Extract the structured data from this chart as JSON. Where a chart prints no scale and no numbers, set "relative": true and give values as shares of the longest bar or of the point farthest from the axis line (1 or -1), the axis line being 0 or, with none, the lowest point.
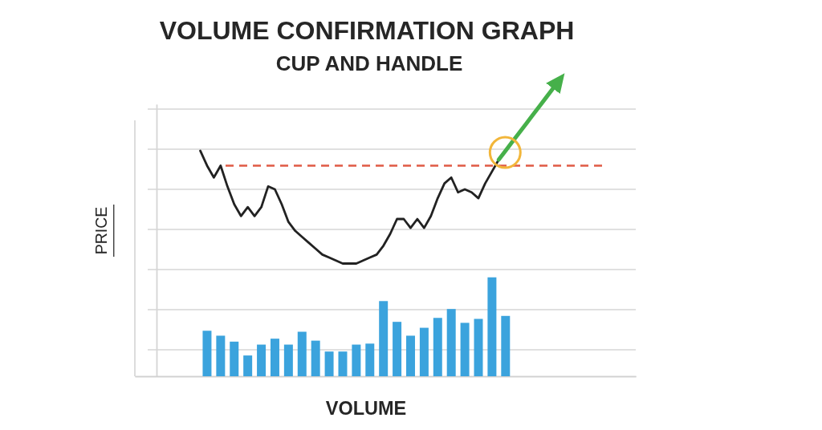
{
  "chart_data": [
    {
      "type": "line",
      "title": "VOLUME CONFIRMATION GRAPH",
      "subtitle": "CUP AND HANDLE",
      "ylabel": "PRICE",
      "relative": true,
      "grid": "y",
      "categories": [
        null,
        null,
        null,
        null,
        null,
        null,
        null,
        null,
        null,
        null,
        null,
        null,
        null,
        null,
        null,
        null,
        null,
        null,
        null,
        null,
        null,
        null,
        null,
        null,
        null,
        null,
        null,
        null,
        null,
        null,
        null,
        null,
        null,
        null,
        null,
        null,
        null,
        null,
        null,
        null,
        null,
        null,
        null,
        null,
        null,
        null,
        null,
        null,
        null,
        null,
        null,
        null,
        null,
        null
      ],
      "series": [
        {
          "color": "#222222",
          "values": [
            0.76,
            0.71,
            0.67,
            0.71,
            0.64,
            0.58,
            0.54,
            0.57,
            0.54,
            0.57,
            0.64,
            0.63,
            0.58,
            0.52,
            0.49,
            0.47,
            0.45,
            0.43,
            0.41,
            0.4,
            0.39,
            0.38,
            0.38,
            0.38,
            0.39,
            0.4,
            0.41,
            0.44,
            0.48,
            0.53,
            0.53,
            0.5,
            0.53,
            0.5,
            0.54,
            0.6,
            0.65,
            0.67,
            0.62,
            0.63,
            0.62,
            0.6,
            0.65,
            0.69,
            0.73,
            null,
            null,
            null,
            null,
            null,
            null,
            null,
            null,
            null
          ]
        },
        {
          "color": "#46b04a",
          "values": [
            null,
            null,
            null,
            null,
            null,
            null,
            null,
            null,
            null,
            null,
            null,
            null,
            null,
            null,
            null,
            null,
            null,
            null,
            null,
            null,
            null,
            null,
            null,
            null,
            null,
            null,
            null,
            null,
            null,
            null,
            null,
            null,
            null,
            null,
            null,
            null,
            null,
            null,
            null,
            null,
            null,
            null,
            null,
            null,
            0.73,
            0.76,
            0.79,
            0.82,
            0.85,
            0.88,
            0.91,
            0.94,
            0.97,
            1
          ]
        }
      ],
      "ref_lines": [
        {
          "axis": "y",
          "value": 0.71,
          "color": "#e05a44",
          "line_style": "dashed"
        }
      ]
    },
    {
      "type": "bar",
      "xlabel": "VOLUME",
      "relative": true,
      "categories": [
        null,
        null,
        null,
        null,
        null,
        null,
        null,
        null,
        null,
        null,
        null,
        null,
        null,
        null,
        null,
        null,
        null,
        null,
        null,
        null,
        null,
        null,
        null
      ],
      "values": [
        0.46,
        0.41,
        0.35,
        0.21,
        0.32,
        0.38,
        0.32,
        0.45,
        0.36,
        0.25,
        0.25,
        0.32,
        0.33,
        0.76,
        0.55,
        0.41,
        0.49,
        0.59,
        0.68,
        0.54,
        0.58,
        1,
        0.61
      ],
      "color": "#3ba3dd"
    }
  ]
}
